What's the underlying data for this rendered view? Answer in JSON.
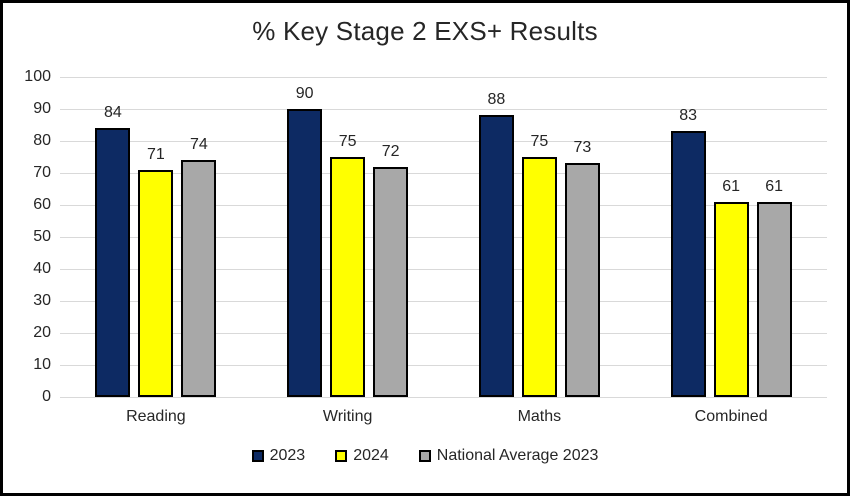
{
  "chart_data": {
    "type": "bar",
    "title": "% Key Stage 2 EXS+ Results",
    "categories": [
      "Reading",
      "Writing",
      "Maths",
      "Combined"
    ],
    "series": [
      {
        "name": "2023",
        "color": "#0d2a63",
        "values": [
          84,
          90,
          88,
          83
        ]
      },
      {
        "name": "2024",
        "color": "#ffff00",
        "values": [
          71,
          75,
          75,
          61
        ]
      },
      {
        "name": "National Average 2023",
        "color": "#a8a8a8",
        "values": [
          74,
          72,
          73,
          61
        ]
      }
    ],
    "ylim": [
      0,
      100
    ],
    "yticks": [
      0,
      10,
      20,
      30,
      40,
      50,
      60,
      70,
      80,
      90,
      100
    ],
    "grid": true,
    "gridline_color": "#d9d9d9",
    "bar_border_color": "#000000",
    "data_labels": true,
    "legend_position": "bottom",
    "xlabel": "",
    "ylabel": ""
  }
}
